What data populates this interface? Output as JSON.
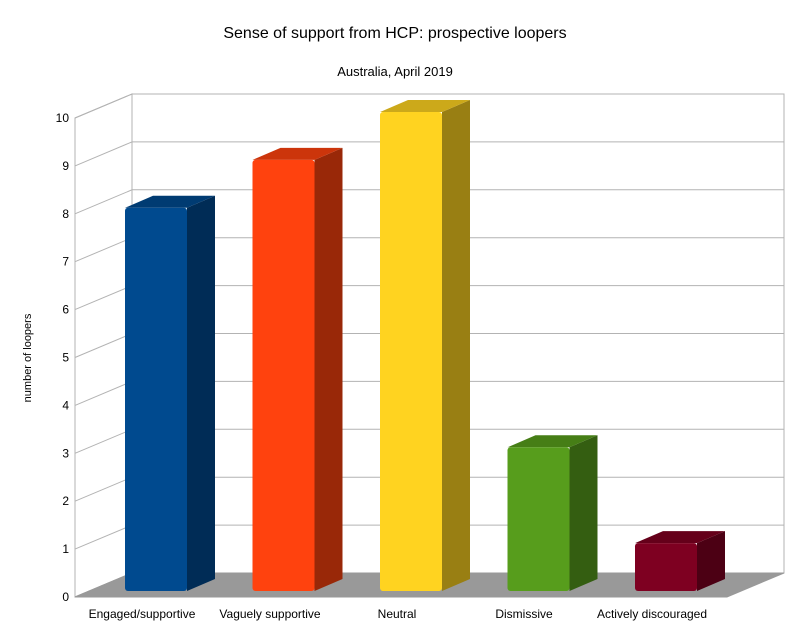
{
  "chart_data": {
    "type": "bar",
    "title": "Sense of support from HCP: prospective loopers",
    "subtitle": "Australia, April 2019",
    "xlabel": "",
    "ylabel": "number of loopers",
    "ylim": [
      0,
      10
    ],
    "yticks": [
      0,
      1,
      2,
      3,
      4,
      5,
      6,
      7,
      8,
      9,
      10
    ],
    "grid": true,
    "legend": "none",
    "style": "3d",
    "categories": [
      "Engaged/supportive",
      "Vaguely supportive",
      "Neutral",
      "Dismissive",
      "Actively discouraged"
    ],
    "values": [
      8,
      9,
      10,
      3,
      1
    ],
    "colors": [
      "#004a8f",
      "#ff420e",
      "#ffd320",
      "#579d1c",
      "#7e0021"
    ]
  }
}
